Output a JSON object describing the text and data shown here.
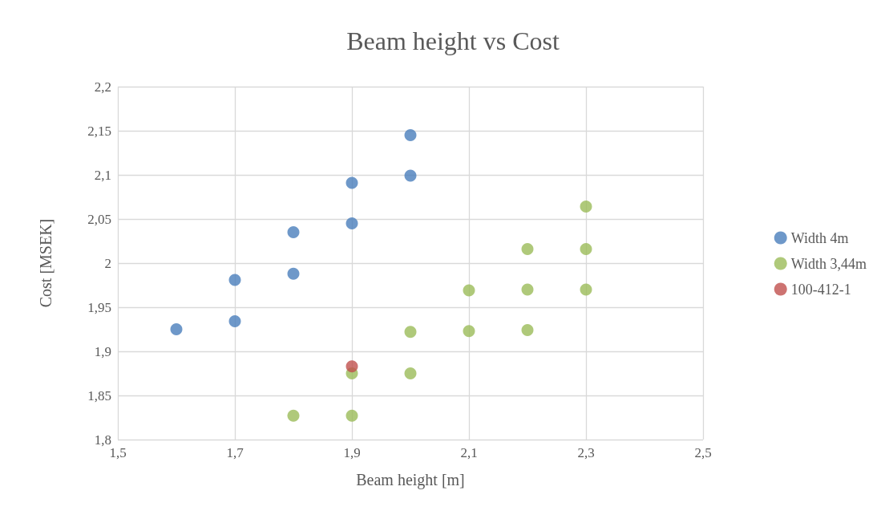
{
  "chart_data": {
    "type": "scatter",
    "title": "Beam height vs Cost",
    "xlabel": "Beam height [m]",
    "ylabel": "Cost [MSEK]",
    "xlim": [
      1.5,
      2.5
    ],
    "xticks": [
      {
        "value": 1.5,
        "label": "1,5"
      },
      {
        "value": 1.7,
        "label": "1,7"
      },
      {
        "value": 1.9,
        "label": "1,9"
      },
      {
        "value": 2.1,
        "label": "2,1"
      },
      {
        "value": 2.3,
        "label": "2,3"
      },
      {
        "value": 2.5,
        "label": "2,5"
      }
    ],
    "ylim": [
      1.8,
      2.2
    ],
    "yticks": [
      {
        "value": 1.8,
        "label": "1,8"
      },
      {
        "value": 1.85,
        "label": "1,85"
      },
      {
        "value": 1.9,
        "label": "1,9"
      },
      {
        "value": 1.95,
        "label": "1,95"
      },
      2,
      {
        "value": 2.05,
        "label": "2,05"
      },
      {
        "value": 2.1,
        "label": "2,1"
      },
      {
        "value": 2.15,
        "label": "2,15"
      },
      {
        "value": 2.2,
        "label": "2,2"
      }
    ],
    "grid": true,
    "legend": "right",
    "marker": "circle",
    "series": [
      {
        "name": "Width 4m",
        "color": "#4a7ebb",
        "x": [
          1.6,
          1.7,
          1.7,
          1.8,
          1.8,
          1.9,
          1.9,
          2.0,
          2.0
        ],
        "values": [
          1.925,
          1.934,
          1.981,
          1.988,
          2.035,
          2.045,
          2.091,
          2.099,
          2.145
        ]
      },
      {
        "name": "Width 3,44m",
        "color": "#9bbb59",
        "x": [
          1.8,
          1.9,
          1.9,
          2.0,
          2.0,
          2.1,
          2.1,
          2.2,
          2.2,
          2.2,
          2.3,
          2.3,
          2.3
        ],
        "values": [
          1.827,
          1.827,
          1.875,
          1.875,
          1.922,
          1.923,
          1.969,
          1.924,
          1.97,
          2.016,
          1.97,
          2.016,
          2.064
        ]
      },
      {
        "name": "100-412-1",
        "color": "#c0504d",
        "x": [
          1.9
        ],
        "values": [
          1.883
        ]
      }
    ]
  }
}
